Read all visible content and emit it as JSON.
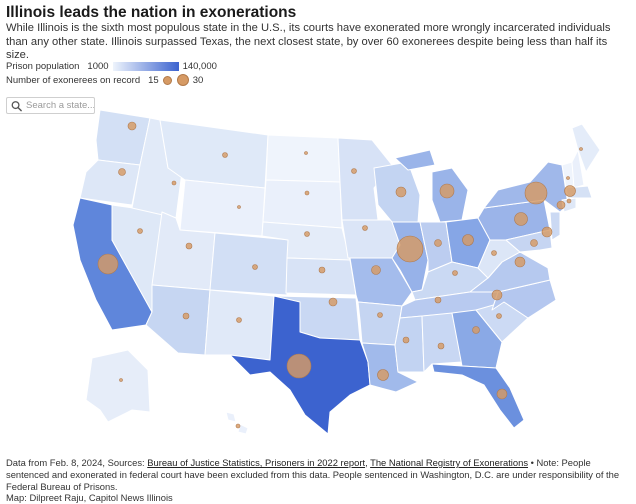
{
  "title": "Illinois leads the nation in exonerations",
  "subtitle": "While Illinois is the sixth most populous state in the U.S., its courts have exonerated more wrongly incarcerated individuals than any other state. Illinois surpassed Texas, the next closest state, by over 60 exonerees despite being less than half its size.",
  "legend": {
    "color_label": "Prison population",
    "color_min": "1000",
    "color_max": "140,000",
    "color_low": "#eef4fc",
    "color_high": "#3c63cf",
    "size_label": "Number of exonerees on record",
    "size_small": "15",
    "size_large": "30",
    "bubble_color": "#d69a64"
  },
  "search": {
    "placeholder": "Search a state...",
    "icon": "search-icon"
  },
  "footer": {
    "lead": "Data from Feb. 8, 2024, Sources:",
    "source1": "Bureau of Justice Statistics, Prisoners in 2022 report",
    "sep": ",",
    "source2": "The National Registry of Exonerations",
    "note": "• Note: People sentenced and exonerated in federal court have been excluded from this data. People sentenced in Washington, D.C. are under responsibility of the Federal Bureau of Prisons.",
    "credit": "Map: Dilpreet Raju, Capitol News Illinois"
  }
}
